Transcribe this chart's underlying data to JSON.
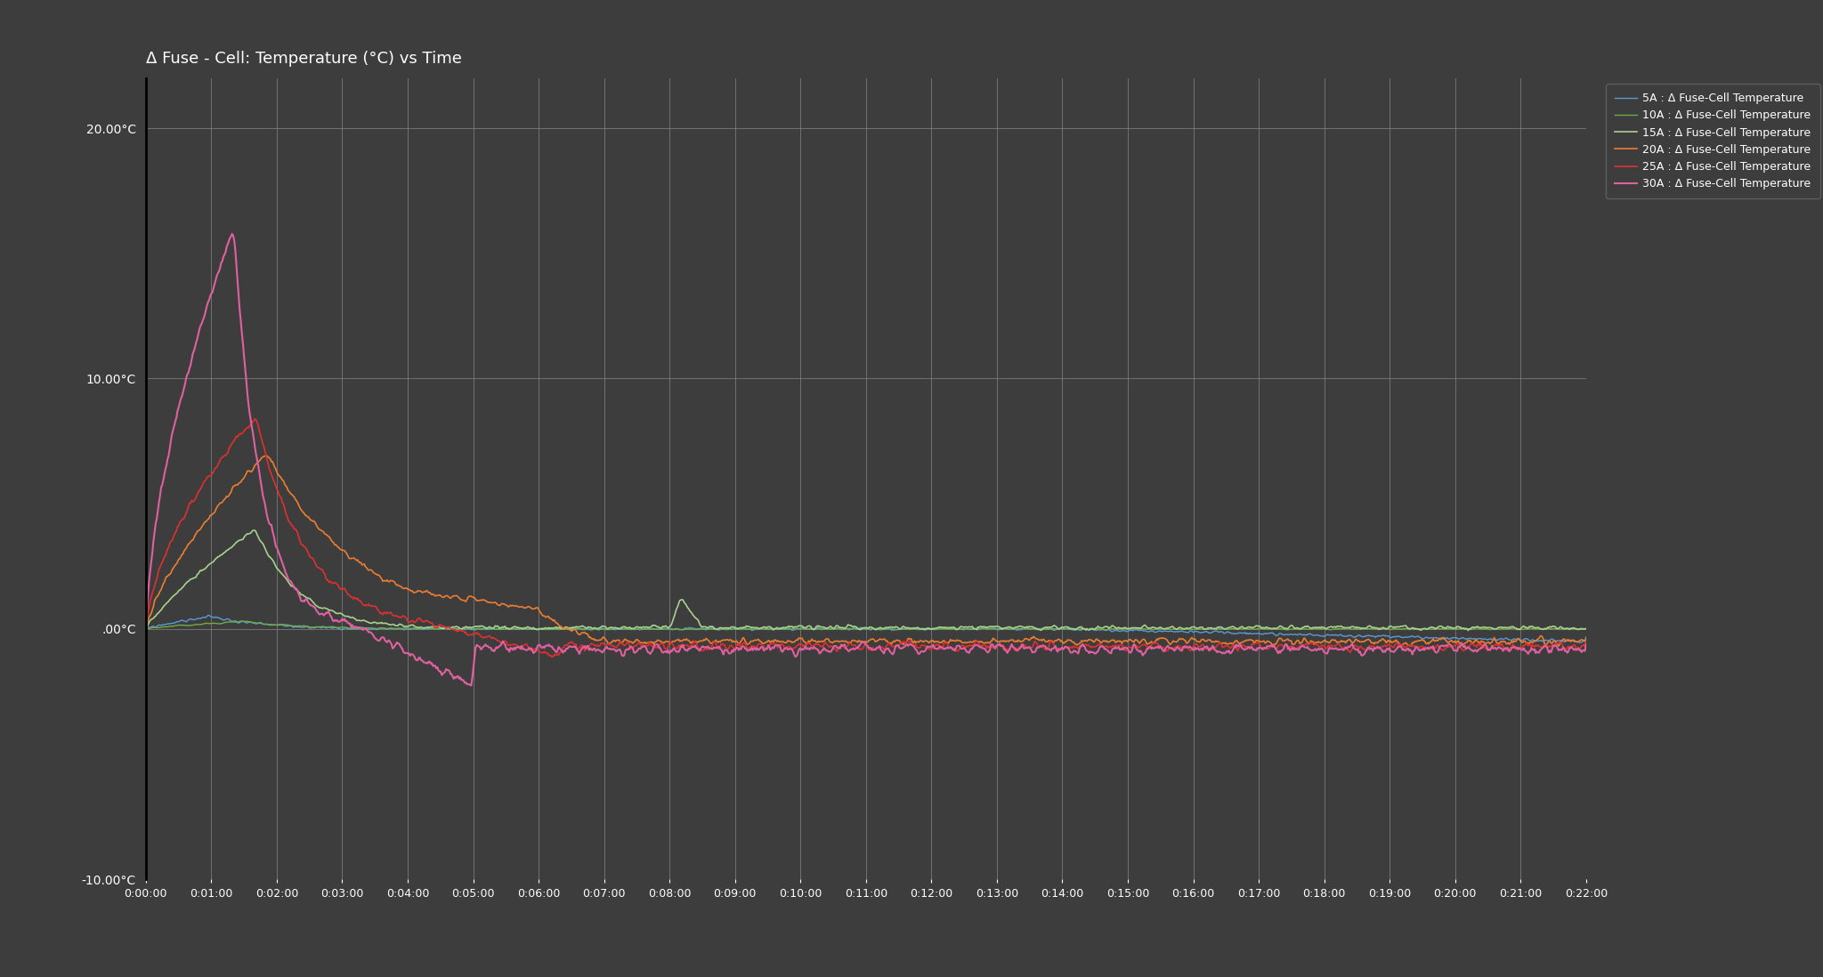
{
  "title": "Δ Fuse - Cell: Temperature (°C) vs Time",
  "background_color": "#3d3d3d",
  "plot_bg_color": "#3d3d3d",
  "grid_color": "#888888",
  "text_color": "#ffffff",
  "spine_color": "#000000",
  "ylim": [
    -10,
    22
  ],
  "yticks": [
    -10,
    0,
    10,
    20
  ],
  "ytick_labels": [
    "-10.00°C",
    ".00°C",
    "10.00°C",
    "20.00°C"
  ],
  "total_seconds": 1320,
  "xtick_interval_seconds": 60,
  "title_fontsize": 13,
  "tick_fontsize": 10,
  "legend_fontsize": 9,
  "series": [
    {
      "label": "5A : Δ Fuse-Cell Temperature",
      "color": "#5b9bd5",
      "linewidth": 1.0
    },
    {
      "label": "10A : Δ Fuse-Cell Temperature",
      "color": "#70ad47",
      "linewidth": 1.0
    },
    {
      "label": "15A : Δ Fuse-Cell Temperature",
      "color": "#a9d18e",
      "linewidth": 1.2
    },
    {
      "label": "20A : Δ Fuse-Cell Temperature",
      "color": "#ed7d31",
      "linewidth": 1.2
    },
    {
      "label": "25A : Δ Fuse-Cell Temperature",
      "color": "#e03030",
      "linewidth": 1.2
    },
    {
      "label": "30A : Δ Fuse-Cell Temperature",
      "color": "#e060a0",
      "linewidth": 1.5
    }
  ]
}
